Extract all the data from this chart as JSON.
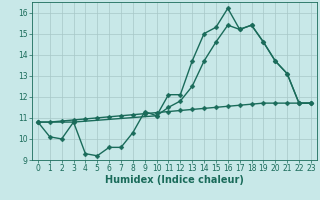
{
  "line1_x": [
    0,
    1,
    2,
    3,
    4,
    5,
    6,
    7,
    8,
    9,
    10,
    11,
    12,
    13,
    14,
    15,
    16,
    17,
    18,
    19,
    20,
    21,
    22,
    23
  ],
  "line1_y": [
    10.8,
    10.1,
    10.0,
    10.8,
    9.3,
    9.2,
    9.6,
    9.6,
    10.3,
    11.3,
    11.1,
    12.1,
    12.1,
    13.7,
    15.0,
    15.3,
    16.2,
    15.2,
    15.4,
    14.6,
    13.7,
    13.1,
    11.7,
    11.7
  ],
  "line2_x": [
    0,
    3,
    10,
    11,
    12,
    13,
    14,
    15,
    16,
    17,
    18,
    19,
    20,
    21,
    22,
    23
  ],
  "line2_y": [
    10.8,
    10.8,
    11.1,
    11.5,
    11.8,
    12.5,
    13.7,
    14.6,
    15.4,
    15.2,
    15.4,
    14.6,
    13.7,
    13.1,
    11.7,
    11.7
  ],
  "line3_x": [
    0,
    1,
    2,
    3,
    4,
    5,
    6,
    7,
    8,
    9,
    10,
    11,
    12,
    13,
    14,
    15,
    16,
    17,
    18,
    19,
    20,
    21,
    22,
    23
  ],
  "line3_y": [
    10.8,
    10.8,
    10.85,
    10.9,
    10.95,
    11.0,
    11.05,
    11.1,
    11.15,
    11.2,
    11.25,
    11.3,
    11.35,
    11.4,
    11.45,
    11.5,
    11.55,
    11.6,
    11.65,
    11.7,
    11.7,
    11.7,
    11.7,
    11.7
  ],
  "color": "#1a6b5a",
  "bg_color": "#c8e8e8",
  "grid_color": "#a8c8c8",
  "xlabel": "Humidex (Indice chaleur)",
  "ylim": [
    9,
    16.5
  ],
  "xlim": [
    -0.5,
    23.5
  ],
  "yticks": [
    9,
    10,
    11,
    12,
    13,
    14,
    15,
    16
  ],
  "xticks": [
    0,
    1,
    2,
    3,
    4,
    5,
    6,
    7,
    8,
    9,
    10,
    11,
    12,
    13,
    14,
    15,
    16,
    17,
    18,
    19,
    20,
    21,
    22,
    23
  ],
  "marker": "D",
  "markersize": 2.5,
  "linewidth": 1.0,
  "fontsize_label": 7,
  "fontsize_tick": 5.5
}
